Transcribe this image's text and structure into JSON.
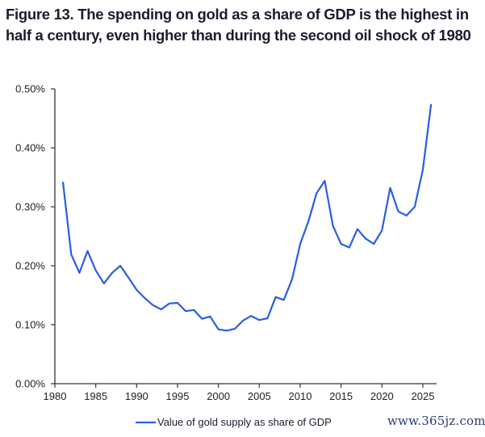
{
  "chart_data": {
    "type": "line",
    "title": "Figure 13. The spending on gold as a share of GDP is the highest in half a century, even higher than during the second oil shock of 1980",
    "xlabel": "",
    "ylabel": "",
    "xlim": [
      1980,
      2027
    ],
    "ylim": [
      0,
      0.005
    ],
    "x_ticks": [
      1980,
      1985,
      1990,
      1995,
      2000,
      2005,
      2010,
      2015,
      2020,
      2025
    ],
    "x_tick_labels": [
      "1980",
      "1985",
      "1990",
      "1995",
      "2000",
      "2005",
      "2010",
      "2015",
      "2020",
      "2025"
    ],
    "y_ticks": [
      0,
      0.001,
      0.002,
      0.003,
      0.004,
      0.005
    ],
    "y_tick_labels": [
      "0.00%",
      "0.10%",
      "0.20%",
      "0.30%",
      "0.40%",
      "0.50%"
    ],
    "grid": false,
    "legend_position": "bottom-center",
    "series": [
      {
        "name": "Value of gold supply as share of GDP",
        "color": "#2b5ce6",
        "x": [
          1981,
          1982,
          1983,
          1984,
          1985,
          1986,
          1987,
          1988,
          1989,
          1990,
          1991,
          1992,
          1993,
          1994,
          1995,
          1996,
          1997,
          1998,
          1999,
          2000,
          2001,
          2002,
          2003,
          2004,
          2005,
          2006,
          2007,
          2008,
          2009,
          2010,
          2011,
          2012,
          2013,
          2014,
          2015,
          2016,
          2017,
          2018,
          2019,
          2020,
          2021,
          2022,
          2023,
          2024,
          2025,
          2026
        ],
        "values": [
          0.00341,
          0.00219,
          0.00188,
          0.00225,
          0.00192,
          0.0017,
          0.00188,
          0.002,
          0.0018,
          0.00159,
          0.00145,
          0.00133,
          0.00126,
          0.00136,
          0.00137,
          0.00123,
          0.00125,
          0.0011,
          0.00114,
          0.00092,
          0.0009,
          0.00093,
          0.00107,
          0.00115,
          0.00108,
          0.00111,
          0.00147,
          0.00142,
          0.00177,
          0.00237,
          0.00275,
          0.00323,
          0.00344,
          0.00268,
          0.00237,
          0.00231,
          0.00262,
          0.00246,
          0.00237,
          0.0026,
          0.00332,
          0.00292,
          0.00285,
          0.003,
          0.00363,
          0.00473
        ]
      }
    ]
  },
  "watermark": "www.365jz.com",
  "colors": {
    "line": "#2b5ce6",
    "axis": "#333333",
    "title": "#1c1c2e"
  }
}
